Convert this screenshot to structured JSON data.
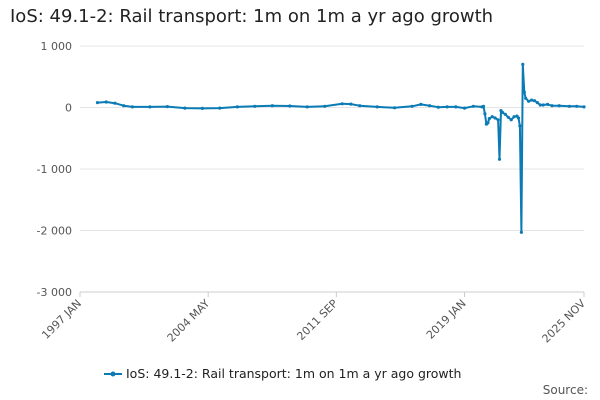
{
  "chart_data": {
    "type": "line",
    "title": "IoS: 49.1-2: Rail transport: 1m on 1m a yr ago growth",
    "xlabel": "",
    "ylabel": "",
    "ylim": [
      -3000,
      1000
    ],
    "xlim": [
      "1997-01",
      "2025-11"
    ],
    "y_ticks": [
      {
        "value": 1000,
        "label": "1 000"
      },
      {
        "value": 0,
        "label": "0"
      },
      {
        "value": -1000,
        "label": "-1 000"
      },
      {
        "value": -2000,
        "label": "-2 000"
      },
      {
        "value": -3000,
        "label": "-3 000"
      }
    ],
    "x_ticks": [
      {
        "date": "1997-01",
        "label": "1997 JAN"
      },
      {
        "date": "2004-05",
        "label": "2004 MAY"
      },
      {
        "date": "2011-09",
        "label": "2011 SEP"
      },
      {
        "date": "2019-01",
        "label": "2019 JAN"
      },
      {
        "date": "2025-11",
        "label": "2025 NOV"
      }
    ],
    "grid": true,
    "legend_position": "bottom",
    "colors": {
      "series": "#0b7bb5",
      "grid": "#e4e4e4",
      "axis": "#cccccc"
    },
    "series": [
      {
        "name": "IoS: 49.1-2: Rail transport: 1m on 1m a yr ago growth",
        "points": [
          [
            "1998-01",
            80
          ],
          [
            "1998-07",
            90
          ],
          [
            "1999-01",
            70
          ],
          [
            "1999-07",
            30
          ],
          [
            "2000-01",
            10
          ],
          [
            "2001-01",
            10
          ],
          [
            "2002-01",
            15
          ],
          [
            "2003-01",
            -10
          ],
          [
            "2004-01",
            -15
          ],
          [
            "2005-01",
            -10
          ],
          [
            "2006-01",
            10
          ],
          [
            "2007-01",
            20
          ],
          [
            "2008-01",
            30
          ],
          [
            "2009-01",
            25
          ],
          [
            "2010-01",
            10
          ],
          [
            "2011-01",
            20
          ],
          [
            "2012-01",
            60
          ],
          [
            "2012-07",
            55
          ],
          [
            "2013-01",
            30
          ],
          [
            "2014-01",
            10
          ],
          [
            "2015-01",
            -5
          ],
          [
            "2016-01",
            20
          ],
          [
            "2016-07",
            50
          ],
          [
            "2017-01",
            30
          ],
          [
            "2017-07",
            5
          ],
          [
            "2018-01",
            10
          ],
          [
            "2018-07",
            10
          ],
          [
            "2019-01",
            -10
          ],
          [
            "2019-07",
            20
          ],
          [
            "2020-01",
            10
          ],
          [
            "2020-02",
            20
          ],
          [
            "2020-03",
            -100
          ],
          [
            "2020-04",
            -270
          ],
          [
            "2020-05",
            -250
          ],
          [
            "2020-06",
            -180
          ],
          [
            "2020-08",
            -150
          ],
          [
            "2020-10",
            -170
          ],
          [
            "2020-12",
            -200
          ],
          [
            "2021-01",
            -840
          ],
          [
            "2021-02",
            -50
          ],
          [
            "2021-03",
            -80
          ],
          [
            "2021-05",
            -110
          ],
          [
            "2021-07",
            -160
          ],
          [
            "2021-09",
            -200
          ],
          [
            "2021-11",
            -150
          ],
          [
            "2022-01",
            -140
          ],
          [
            "2022-02",
            -170
          ],
          [
            "2022-03",
            -300
          ],
          [
            "2022-04",
            -2030
          ],
          [
            "2022-05",
            700
          ],
          [
            "2022-06",
            250
          ],
          [
            "2022-07",
            150
          ],
          [
            "2022-09",
            100
          ],
          [
            "2022-11",
            120
          ],
          [
            "2023-01",
            110
          ],
          [
            "2023-03",
            80
          ],
          [
            "2023-05",
            40
          ],
          [
            "2023-07",
            40
          ],
          [
            "2023-10",
            50
          ],
          [
            "2024-01",
            30
          ],
          [
            "2024-06",
            30
          ],
          [
            "2025-01",
            20
          ],
          [
            "2025-06",
            20
          ],
          [
            "2025-11",
            10
          ]
        ]
      }
    ],
    "source_label": "Source:"
  }
}
